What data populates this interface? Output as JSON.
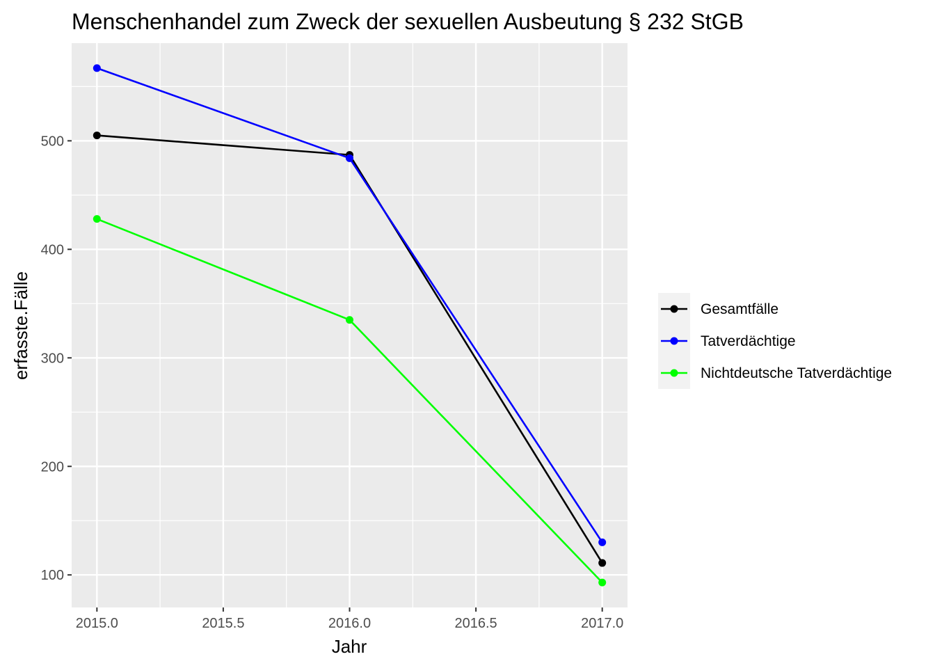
{
  "chart_data": {
    "type": "line",
    "title": "Menschenhandel zum Zweck der sexuellen Ausbeutung § 232 StGB",
    "xlabel": "Jahr",
    "ylabel": "erfasste.Fälle",
    "x": [
      2015,
      2016,
      2017
    ],
    "xlim": [
      2014.9,
      2017.1
    ],
    "ylim": [
      70,
      590
    ],
    "x_ticks": [
      2015.0,
      2015.5,
      2016.0,
      2016.5,
      2017.0
    ],
    "x_tick_labels": [
      "2015.0",
      "2015.5",
      "2016.0",
      "2016.5",
      "2017.0"
    ],
    "y_ticks": [
      100,
      200,
      300,
      400,
      500
    ],
    "y_tick_labels": [
      "100",
      "200",
      "300",
      "400",
      "500"
    ],
    "grid": true,
    "legend_position": "right",
    "panel_background": "#ebebeb",
    "series": [
      {
        "name": "Gesamtfälle",
        "color": "#000000",
        "values": [
          505,
          487,
          111
        ]
      },
      {
        "name": "Tatverdächtige",
        "color": "#0000ff",
        "values": [
          567,
          484,
          130
        ]
      },
      {
        "name": "Nichtdeutsche Tatverdächtige",
        "color": "#00ff00",
        "values": [
          428,
          335,
          93
        ]
      }
    ]
  }
}
